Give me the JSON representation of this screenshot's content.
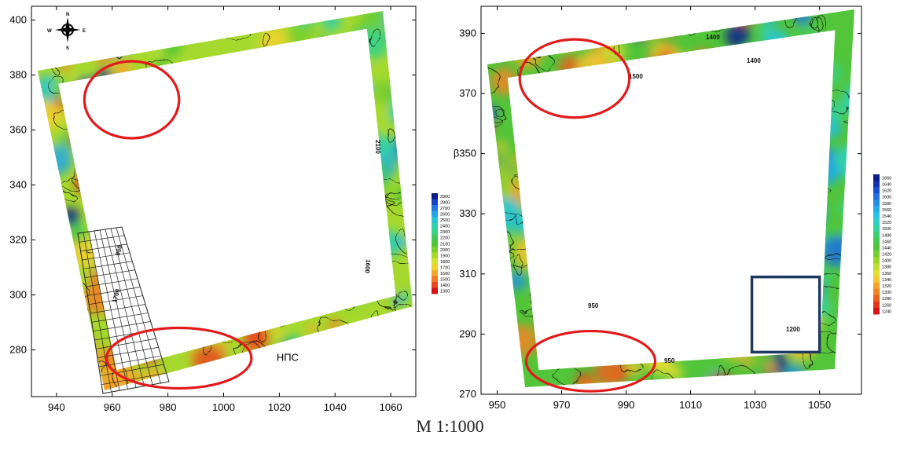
{
  "caption": "М 1:1000",
  "colors": {
    "highlight_circle": "#e31a1c",
    "highlight_box": "#1f3a5f"
  },
  "icons": [
    "compass-rose-icon"
  ],
  "chart_data": [
    {
      "type": "heatmap",
      "title": "",
      "xlabel": "",
      "ylabel": "",
      "xlim": [
        931,
        1069
      ],
      "ylim": [
        263,
        405
      ],
      "xticks": [
        940,
        960,
        980,
        1000,
        1020,
        1040,
        1060
      ],
      "yticks": [
        280,
        300,
        320,
        340,
        360,
        380,
        400
      ],
      "compass": {
        "labels": [
          "N",
          "E",
          "S",
          "W"
        ]
      },
      "colorbar": {
        "labels": [
          "2900",
          "2800",
          "2700",
          "2600",
          "2500",
          "2400",
          "2300",
          "2200",
          "2100",
          "2000",
          "1900",
          "1800",
          "1700",
          "1600",
          "1500",
          "1400",
          "1300"
        ],
        "colors": [
          "#0a1c8c",
          "#1542c4",
          "#1f77e0",
          "#20a6e8",
          "#26c6d8",
          "#2fcfb0",
          "#3ad18a",
          "#41c95a",
          "#4cc634",
          "#77cf2c",
          "#a6d92e",
          "#d4e032",
          "#f2d12f",
          "#f5a829",
          "#f27c23",
          "#e8481c",
          "#d41414"
        ]
      },
      "contour_labels": [
        "2100",
        "950",
        "1600",
        "1700"
      ],
      "annotations": [
        {
          "text": "НПС",
          "x": 1019,
          "y": 276
        }
      ],
      "highlights": [
        {
          "shape": "ellipse",
          "cx": 967,
          "cy": 371,
          "rx": 17,
          "ry": 14
        },
        {
          "shape": "ellipse",
          "cx": 984,
          "cy": 277,
          "rx": 26,
          "ry": 11
        }
      ]
    },
    {
      "type": "heatmap",
      "title": "",
      "xlabel": "",
      "ylabel": "",
      "xlim": [
        945,
        1063
      ],
      "ylim": [
        270,
        399
      ],
      "xticks": [
        950,
        970,
        990,
        1010,
        1030,
        1050
      ],
      "yticks": [
        270,
        290,
        310,
        330,
        350,
        370,
        390
      ],
      "ytick_labels": [
        "270",
        "290",
        "310",
        "330",
        "β350",
        "370",
        "390"
      ],
      "colorbar": {
        "labels": [
          "1660",
          "1640",
          "1620",
          "1600",
          "1580",
          "1560",
          "1540",
          "1520",
          "1500",
          "1480",
          "1460",
          "1440",
          "1420",
          "1400",
          "1380",
          "1360",
          "1340",
          "1320",
          "1300",
          "1280",
          "1260",
          "1240"
        ],
        "colors": [
          "#0a1c8c",
          "#1232b0",
          "#1a4fd0",
          "#1f6fe0",
          "#2090e6",
          "#22acea",
          "#26c6e0",
          "#2dd0c0",
          "#35d39e",
          "#3ccf78",
          "#44c955",
          "#52c53a",
          "#76cc2e",
          "#9bd52e",
          "#bfdc30",
          "#e0de32",
          "#f4c630",
          "#f5a42a",
          "#f28426",
          "#ec6020",
          "#e03a1a",
          "#d11414"
        ]
      },
      "contour_labels": [
        "1400",
        "1400",
        "1500",
        "950",
        "1200",
        "950"
      ],
      "highlights": [
        {
          "shape": "ellipse",
          "cx": 974,
          "cy": 375,
          "rx": 17,
          "ry": 13
        },
        {
          "shape": "ellipse",
          "cx": 979,
          "cy": 281,
          "rx": 20,
          "ry": 10
        },
        {
          "shape": "rect",
          "x0": 1029,
          "x1": 1050,
          "y0": 284,
          "y1": 309
        }
      ]
    }
  ]
}
